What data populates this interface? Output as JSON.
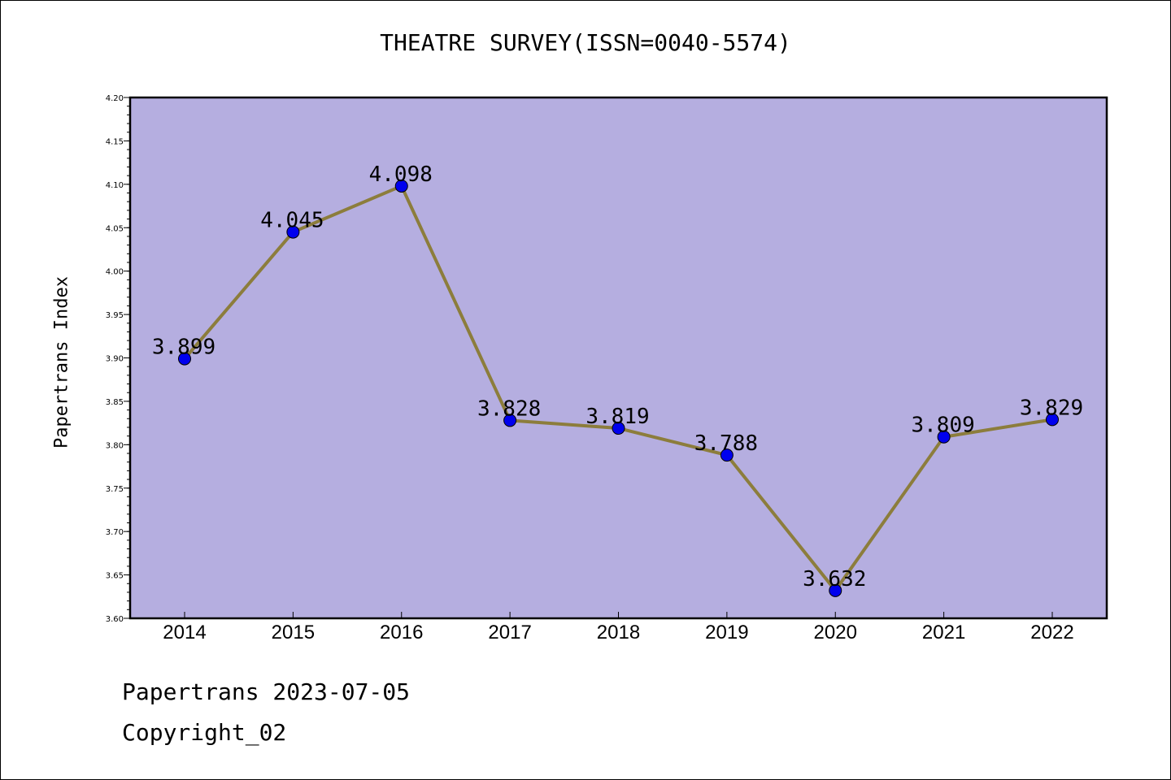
{
  "chart_data": {
    "type": "line",
    "title": "THEATRE SURVEY(ISSN=0040-5574)",
    "xlabel": "",
    "ylabel": "Papertrans Index",
    "categories": [
      "2014",
      "2015",
      "2016",
      "2017",
      "2018",
      "2019",
      "2020",
      "2021",
      "2022"
    ],
    "values": [
      3.899,
      4.045,
      4.098,
      3.828,
      3.819,
      3.788,
      3.632,
      3.809,
      3.829
    ],
    "value_labels": [
      "3.899",
      "4.045",
      "4.098",
      "3.828",
      "3.819",
      "3.788",
      "3.632",
      "3.809",
      "3.829"
    ],
    "ylim": [
      3.6,
      4.2
    ],
    "yticks": [
      "3.60",
      "3.65",
      "3.70",
      "3.75",
      "3.80",
      "3.85",
      "3.90",
      "3.95",
      "4.00",
      "4.05",
      "4.10",
      "4.15",
      "4.20"
    ],
    "grid": false,
    "colors": {
      "plot_background": "#b5aee0",
      "line": "#8c7d3c",
      "marker": "#0000ee"
    }
  },
  "footer": {
    "date_text": "Papertrans 2023-07-05",
    "copyright_text": "Copyright_02"
  }
}
